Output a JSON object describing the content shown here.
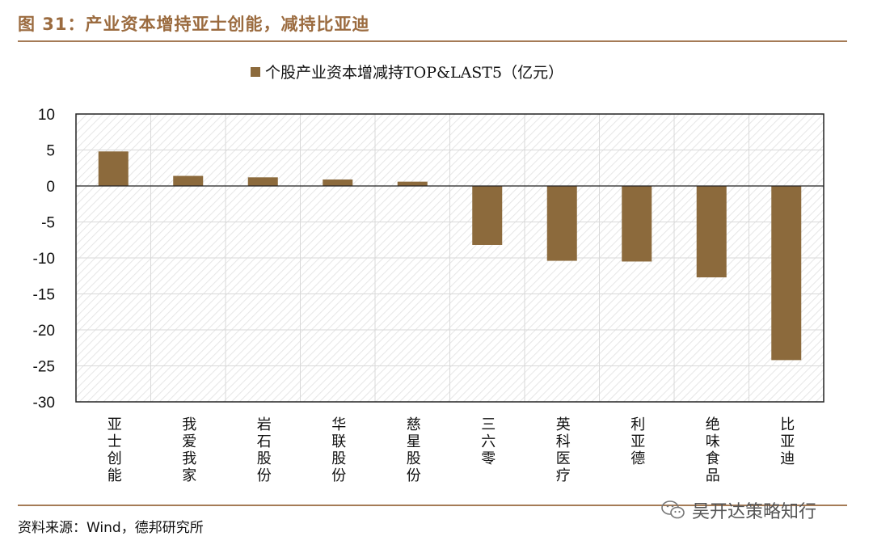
{
  "figure": {
    "title": "图 31：产业资本增持亚士创能，减持比亚迪",
    "source": "资料来源：Wind，德邦研究所",
    "watermark": "吴开达策略知行",
    "watermark_icon": "wechat-icon"
  },
  "colors": {
    "bar": "#8c6a3c",
    "title": "#9b6b3f",
    "rule": "#a57b56",
    "hatch": "#e6e6e6"
  },
  "chart_data": {
    "type": "bar",
    "title": "个股产业资本增减持TOP&LAST5（亿元）",
    "legend": {
      "entries": [
        "个股产业资本增减持TOP&LAST5（亿元）"
      ],
      "position": "top-center"
    },
    "categories": [
      "亚士创能",
      "我爱我家",
      "岩石股份",
      "华联股份",
      "慈星股份",
      "三六零",
      "英科医疗",
      "利亚德",
      "绝味食品",
      "比亚迪"
    ],
    "values": [
      4.8,
      1.4,
      1.2,
      0.9,
      0.6,
      -8.2,
      -10.4,
      -10.5,
      -12.7,
      -24.2
    ],
    "ylim": [
      -30,
      10
    ],
    "yticks": [
      "10",
      "5",
      "0",
      "-5",
      "-10",
      "-15",
      "-20",
      "-25",
      "-30"
    ],
    "ytick_values": [
      10,
      5,
      0,
      -5,
      -10,
      -15,
      -20,
      -25,
      -30
    ],
    "grid": true,
    "xlabel": "",
    "ylabel": ""
  }
}
